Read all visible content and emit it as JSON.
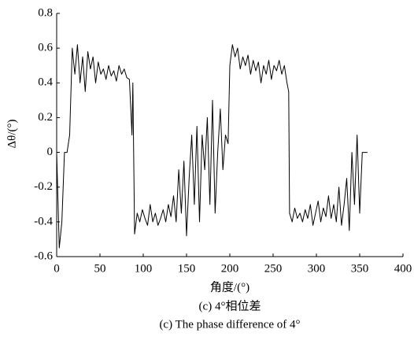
{
  "chart_data": {
    "type": "line",
    "xlabel": "角度/(°)",
    "ylabel": "Δθ/(°)",
    "caption_cn": "(c) 4°相位差",
    "caption_en": "(c) The phase difference of 4°",
    "xlim": [
      0,
      400
    ],
    "xticks": [
      0,
      50,
      100,
      150,
      200,
      250,
      300,
      350,
      400
    ],
    "ylim": [
      -0.6,
      0.8
    ],
    "yticks": [
      -0.6,
      -0.4,
      -0.2,
      0,
      0.2,
      0.4,
      0.6,
      0.8
    ],
    "color": "#000000",
    "x": [
      0,
      3,
      6,
      9,
      12,
      15,
      18,
      21,
      24,
      27,
      30,
      33,
      36,
      39,
      42,
      45,
      48,
      51,
      54,
      57,
      60,
      63,
      66,
      69,
      72,
      75,
      78,
      81,
      84,
      87,
      88,
      90,
      93,
      96,
      99,
      102,
      105,
      108,
      111,
      114,
      117,
      120,
      123,
      126,
      129,
      132,
      135,
      138,
      141,
      144,
      147,
      150,
      153,
      156,
      159,
      162,
      165,
      168,
      171,
      174,
      177,
      180,
      183,
      186,
      189,
      192,
      195,
      198,
      200,
      203,
      206,
      209,
      212,
      215,
      218,
      221,
      224,
      227,
      230,
      233,
      236,
      239,
      242,
      245,
      248,
      251,
      254,
      257,
      260,
      263,
      266,
      268,
      269,
      272,
      275,
      278,
      281,
      284,
      287,
      290,
      293,
      296,
      299,
      302,
      305,
      308,
      311,
      314,
      317,
      320,
      323,
      326,
      329,
      332,
      335,
      338,
      341,
      344,
      347,
      350,
      353,
      356,
      359
    ],
    "values": [
      0,
      -0.55,
      -0.4,
      0,
      0,
      0.1,
      0.6,
      0.45,
      0.62,
      0.4,
      0.55,
      0.35,
      0.58,
      0.48,
      0.55,
      0.4,
      0.52,
      0.45,
      0.48,
      0.42,
      0.5,
      0.44,
      0.47,
      0.41,
      0.5,
      0.45,
      0.48,
      0.43,
      0.42,
      0.1,
      0.4,
      -0.47,
      -0.35,
      -0.4,
      -0.33,
      -0.38,
      -0.42,
      -0.3,
      -0.4,
      -0.35,
      -0.42,
      -0.38,
      -0.33,
      -0.4,
      -0.3,
      -0.37,
      -0.25,
      -0.4,
      -0.1,
      -0.35,
      -0.05,
      -0.48,
      -0.15,
      0.1,
      -0.3,
      0.15,
      -0.4,
      0.1,
      -0.1,
      0.2,
      -0.3,
      0.3,
      -0.35,
      0,
      0.25,
      -0.1,
      0.1,
      0.05,
      0.5,
      0.62,
      0.55,
      0.6,
      0.48,
      0.55,
      0.5,
      0.56,
      0.45,
      0.53,
      0.47,
      0.52,
      0.4,
      0.5,
      0.45,
      0.53,
      0.42,
      0.5,
      0.47,
      0.53,
      0.45,
      0.5,
      0.4,
      0.35,
      -0.35,
      -0.4,
      -0.32,
      -0.38,
      -0.35,
      -0.4,
      -0.33,
      -0.38,
      -0.3,
      -0.42,
      -0.35,
      -0.28,
      -0.4,
      -0.32,
      -0.37,
      -0.25,
      -0.38,
      -0.3,
      -0.4,
      -0.2,
      -0.42,
      -0.3,
      -0.15,
      -0.45,
      0,
      -0.3,
      0.1,
      -0.35,
      0,
      0,
      0
    ]
  }
}
